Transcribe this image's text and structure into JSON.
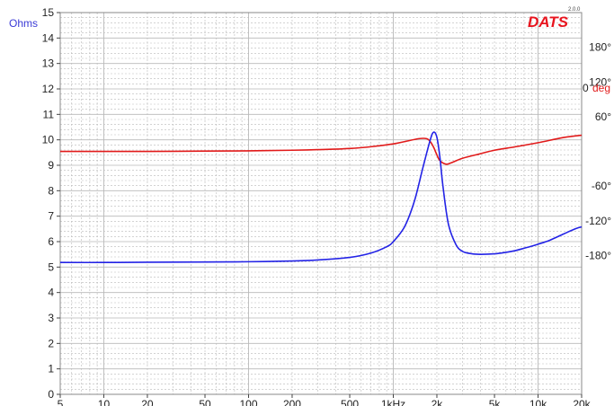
{
  "brand": {
    "logo": "DATS",
    "version": "2.0.0"
  },
  "chart_data": {
    "type": "line",
    "xscale": "log",
    "xlim": [
      5,
      20000
    ],
    "x_ticks": [
      {
        "value": 5,
        "label": "5"
      },
      {
        "value": 10,
        "label": "10"
      },
      {
        "value": 20,
        "label": "20"
      },
      {
        "value": 50,
        "label": "50"
      },
      {
        "value": 100,
        "label": "100"
      },
      {
        "value": 200,
        "label": "200"
      },
      {
        "value": 500,
        "label": "500"
      },
      {
        "value": 1000,
        "label": "1kHz"
      },
      {
        "value": 2000,
        "label": "2k"
      },
      {
        "value": 5000,
        "label": "5k"
      },
      {
        "value": 10000,
        "label": "10k"
      },
      {
        "value": 20000,
        "label": "20k"
      }
    ],
    "ylabel": "Ohms",
    "ylim": [
      0,
      15
    ],
    "y_ticks": [
      0,
      1,
      2,
      3,
      4,
      5,
      6,
      7,
      8,
      9,
      10,
      11,
      12,
      13,
      14,
      15
    ],
    "y2label": "deg",
    "y2lim": [
      -420,
      240
    ],
    "y2_ticks": [
      {
        "value": 180,
        "label": "180°"
      },
      {
        "value": 120,
        "label": "120°"
      },
      {
        "value": 60,
        "label": "60°"
      },
      {
        "value": 0,
        "label": "0"
      },
      {
        "value": -60,
        "label": "-60°"
      },
      {
        "value": -120,
        "label": "-120°"
      },
      {
        "value": -180,
        "label": "-180°"
      }
    ],
    "grid": true,
    "colors": {
      "impedance": "#2323e6",
      "phase": "#e11a1a",
      "axis_left": "#3b3bd6",
      "axis_right": "#e11a1a",
      "grid": "#b9b9b9"
    },
    "series": [
      {
        "axis": "left",
        "x": [
          5,
          10,
          20,
          50,
          100,
          200,
          300,
          500,
          700,
          900,
          1000,
          1200,
          1400,
          1600,
          1800,
          1900,
          2000,
          2100,
          2200,
          2400,
          2700,
          3000,
          3500,
          4000,
          5000,
          6000,
          7000,
          8000,
          9000,
          10000,
          12000,
          15000,
          18000,
          20000
        ],
        "y": [
          5.18,
          5.18,
          5.19,
          5.2,
          5.21,
          5.24,
          5.28,
          5.38,
          5.55,
          5.8,
          6.0,
          6.6,
          7.6,
          8.9,
          10.0,
          10.3,
          10.1,
          9.3,
          8.2,
          6.7,
          5.9,
          5.62,
          5.52,
          5.5,
          5.52,
          5.58,
          5.65,
          5.74,
          5.82,
          5.9,
          6.05,
          6.3,
          6.5,
          6.58
        ]
      },
      {
        "axis": "right",
        "x": [
          5,
          10,
          20,
          50,
          100,
          200,
          300,
          500,
          700,
          1000,
          1200,
          1500,
          1700,
          1800,
          1900,
          2000,
          2100,
          2300,
          2500,
          3000,
          4000,
          5000,
          7000,
          10000,
          15000,
          20000
        ],
        "y": [
          0,
          0,
          0,
          0.5,
          1,
          2,
          3,
          5,
          8,
          13,
          17,
          22,
          22,
          17,
          7,
          -6,
          -16,
          -22,
          -20,
          -12,
          -4,
          2,
          8,
          15,
          24,
          28
        ]
      }
    ]
  }
}
